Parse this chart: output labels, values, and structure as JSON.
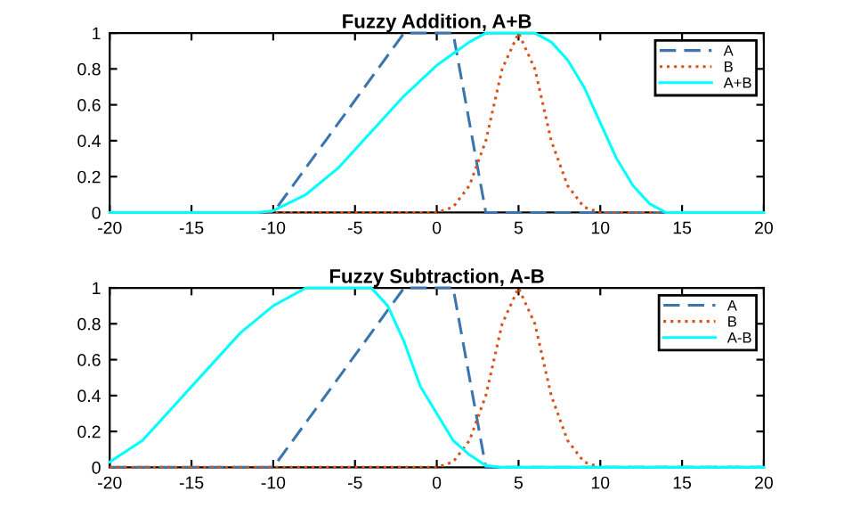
{
  "chart_data": [
    {
      "type": "line",
      "title": "Fuzzy Addition, A+B",
      "xlim": [
        -20,
        20
      ],
      "ylim": [
        0,
        1
      ],
      "xticks": [
        -20,
        -15,
        -10,
        -5,
        0,
        5,
        10,
        15,
        20
      ],
      "yticks": [
        0,
        0.2,
        0.4,
        0.6,
        0.8,
        1
      ],
      "grid": false,
      "legend": "top right",
      "series": [
        {
          "name": "A",
          "color": "#3b75af",
          "line_style": "dashed",
          "x": [
            -20,
            -10,
            -2,
            1,
            3,
            20
          ],
          "values": [
            0,
            0,
            1,
            1,
            0,
            0
          ]
        },
        {
          "name": "B",
          "color": "#d95319",
          "line_style": "dotted",
          "x": [
            -20,
            0,
            1,
            2,
            3,
            4,
            5,
            6,
            7,
            8,
            9,
            10,
            20
          ],
          "values": [
            0,
            0,
            0.03,
            0.15,
            0.4,
            0.8,
            1,
            0.8,
            0.4,
            0.15,
            0.03,
            0,
            0
          ]
        },
        {
          "name": "A+B",
          "color": "#00ffff",
          "line_style": "solid",
          "x": [
            -20,
            -11,
            -10,
            -8,
            -6,
            -4,
            -2,
            0,
            2,
            3,
            6,
            7,
            8,
            9,
            10,
            11,
            12,
            13,
            14,
            20
          ],
          "values": [
            0,
            0,
            0.01,
            0.1,
            0.25,
            0.45,
            0.65,
            0.82,
            0.95,
            1,
            1,
            0.95,
            0.85,
            0.7,
            0.5,
            0.3,
            0.15,
            0.05,
            0,
            0
          ]
        }
      ]
    },
    {
      "type": "line",
      "title": "Fuzzy Subtraction, A-B",
      "xlim": [
        -20,
        20
      ],
      "ylim": [
        0,
        1
      ],
      "xticks": [
        -20,
        -15,
        -10,
        -5,
        0,
        5,
        10,
        15,
        20
      ],
      "yticks": [
        0,
        0.2,
        0.4,
        0.6,
        0.8,
        1
      ],
      "grid": false,
      "legend": "top right",
      "series": [
        {
          "name": "A",
          "color": "#3b75af",
          "line_style": "dashed",
          "x": [
            -20,
            -10,
            -2,
            1,
            3,
            20
          ],
          "values": [
            0,
            0,
            1,
            1,
            0,
            0
          ]
        },
        {
          "name": "B",
          "color": "#d95319",
          "line_style": "dotted",
          "x": [
            -20,
            0,
            1,
            2,
            3,
            4,
            5,
            6,
            7,
            8,
            9,
            10,
            20
          ],
          "values": [
            0,
            0,
            0.03,
            0.15,
            0.4,
            0.8,
            1,
            0.8,
            0.4,
            0.15,
            0.03,
            0,
            0
          ]
        },
        {
          "name": "A-B",
          "color": "#00ffff",
          "line_style": "solid",
          "x": [
            -20,
            -18,
            -16,
            -14,
            -12,
            -10,
            -8,
            -4,
            -3,
            -2,
            -1,
            0,
            1,
            2,
            3,
            4,
            20
          ],
          "values": [
            0.03,
            0.15,
            0.35,
            0.55,
            0.75,
            0.9,
            1,
            1,
            0.9,
            0.7,
            0.45,
            0.3,
            0.15,
            0.07,
            0.01,
            0,
            0
          ]
        }
      ]
    }
  ]
}
